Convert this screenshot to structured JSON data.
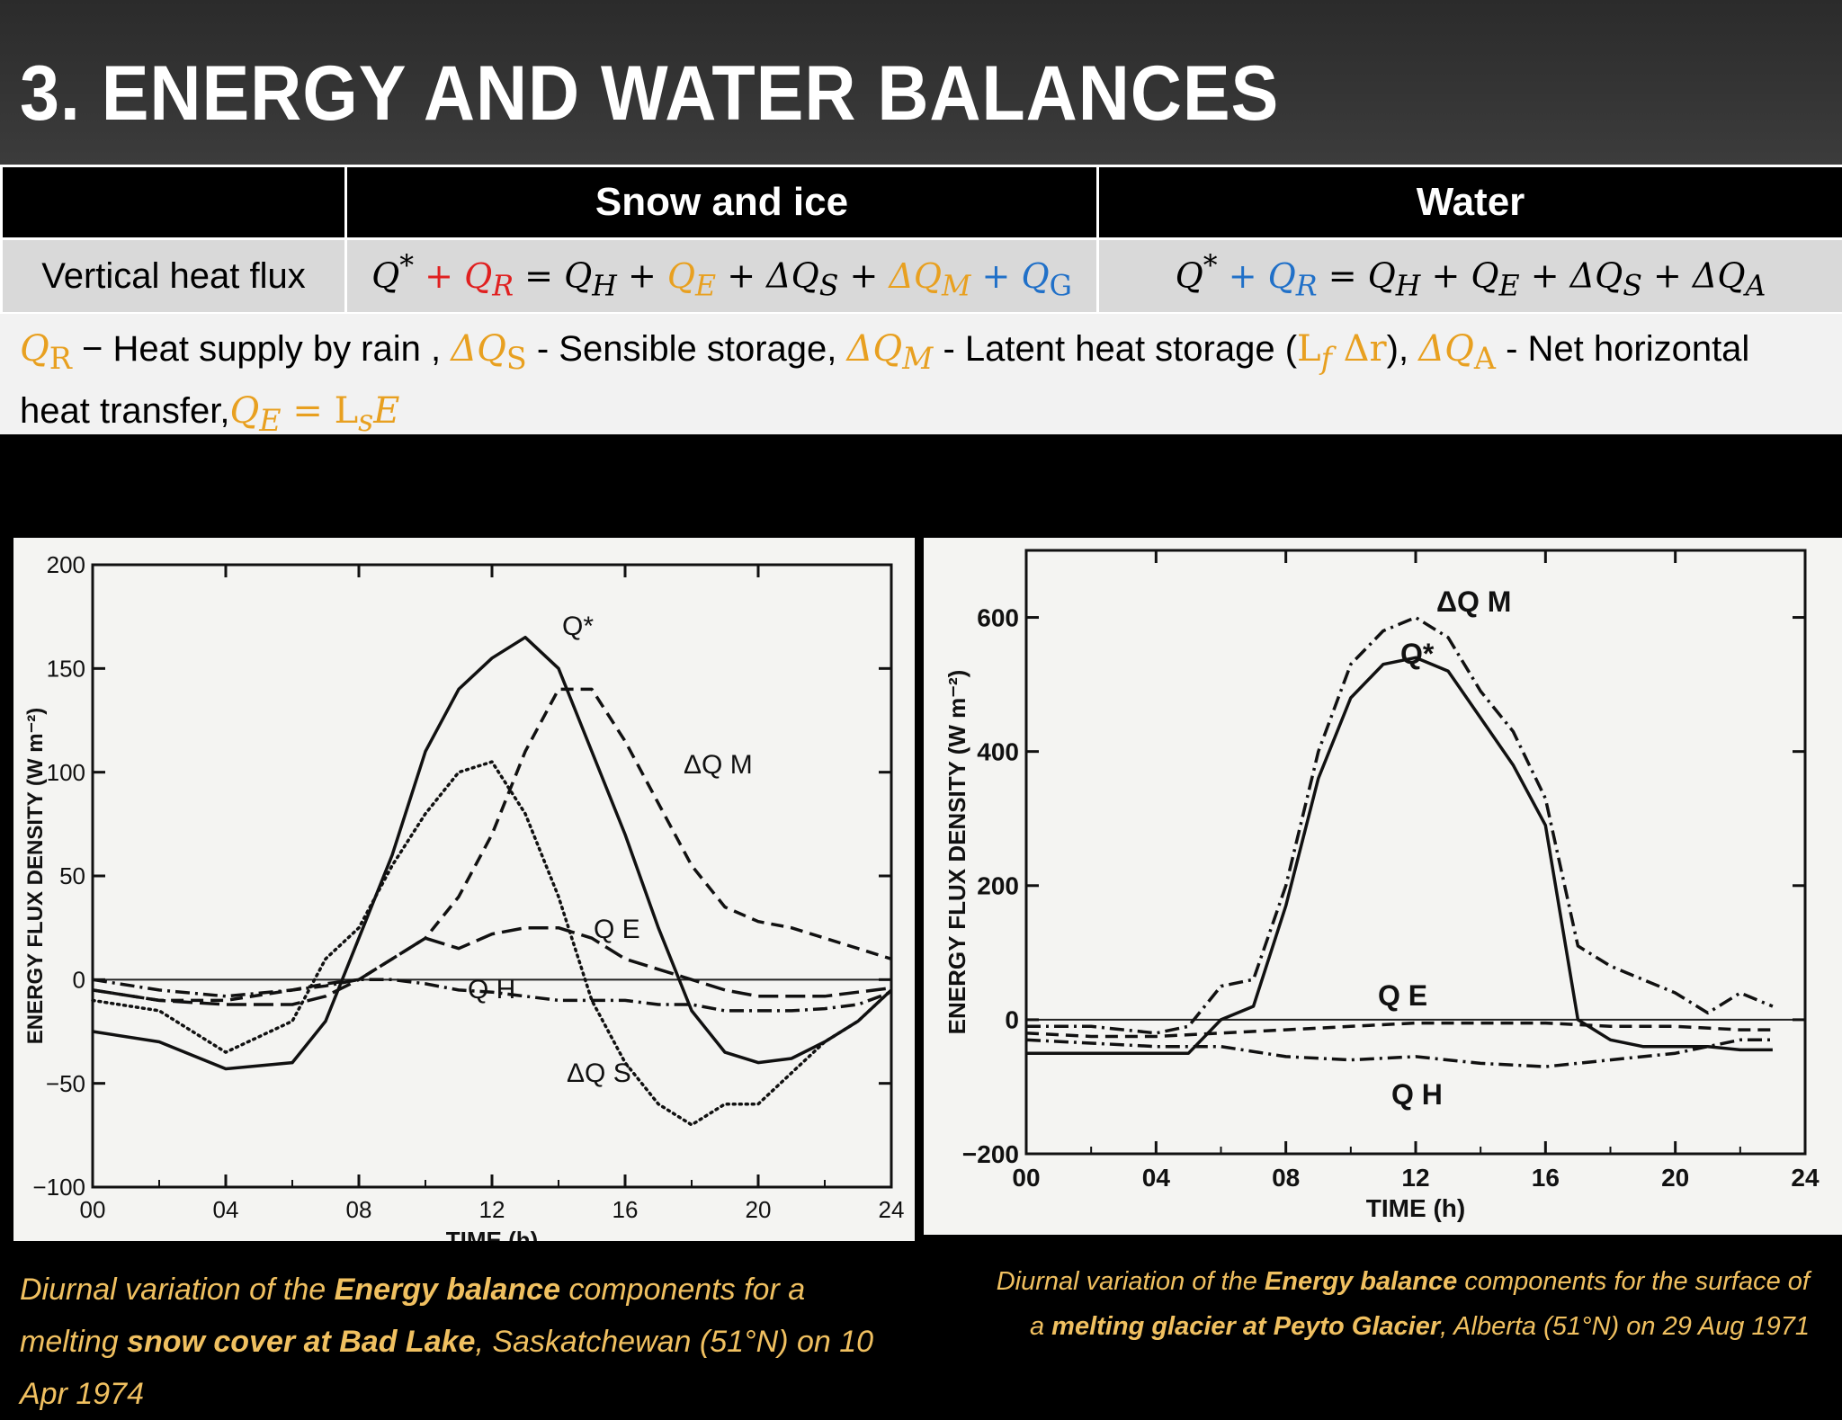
{
  "title": "3. ENERGY AND WATER BALANCES",
  "table": {
    "headers": [
      "",
      "Snow and ice",
      "Water"
    ],
    "row_label": "Vertical heat flux"
  },
  "definitions": {
    "qr_text": " − Heat supply by rain ,   ",
    "dqs_text": " - Sensible storage, ",
    "dqm_text": " - Latent heat storage (",
    "dqa_text": " - Net horizontal heat transfer,"
  },
  "colors": {
    "red": "#e02020",
    "orange": "#e8a020",
    "blue": "#2070c8"
  },
  "chart_data": [
    {
      "type": "line",
      "title": "",
      "xlabel": "TIME (h)",
      "ylabel": "ENERGY FLUX DENSITY (W m⁻²)",
      "xlim": [
        0,
        24
      ],
      "ylim": [
        -100,
        200
      ],
      "xticks": [
        "00",
        "04",
        "08",
        "12",
        "16",
        "20",
        "24"
      ],
      "yticks": [
        "200",
        "150",
        "100",
        "50",
        "0",
        "−50",
        "−100"
      ],
      "series": [
        {
          "name": "Q*",
          "style": "solid",
          "x": [
            0,
            2,
            4,
            6,
            7,
            8,
            9,
            10,
            11,
            12,
            13,
            14,
            15,
            16,
            17,
            18,
            19,
            20,
            21,
            22,
            23,
            24
          ],
          "y": [
            -25,
            -30,
            -43,
            -40,
            -20,
            20,
            60,
            110,
            140,
            155,
            165,
            150,
            110,
            70,
            25,
            -15,
            -35,
            -40,
            -38,
            -30,
            -20,
            -5
          ]
        },
        {
          "name": "ΔQM",
          "style": "dashed",
          "x": [
            0,
            2,
            4,
            6,
            7,
            8,
            9,
            10,
            11,
            12,
            13,
            14,
            15,
            16,
            17,
            18,
            19,
            20,
            21,
            22,
            23,
            24
          ],
          "y": [
            -5,
            -10,
            -10,
            -5,
            -2,
            0,
            10,
            20,
            40,
            70,
            110,
            140,
            140,
            115,
            85,
            55,
            35,
            28,
            25,
            20,
            15,
            10
          ]
        },
        {
          "name": "ΔQS",
          "style": "dotted",
          "x": [
            0,
            2,
            4,
            6,
            7,
            8,
            9,
            10,
            11,
            12,
            13,
            14,
            15,
            16,
            17,
            18,
            19,
            20,
            21,
            22,
            23,
            24
          ],
          "y": [
            -10,
            -15,
            -35,
            -20,
            10,
            25,
            55,
            80,
            100,
            105,
            80,
            40,
            -10,
            -40,
            -60,
            -70,
            -60,
            -60,
            -45,
            -30,
            -20,
            -5
          ]
        },
        {
          "name": "QE",
          "style": "long-dash",
          "x": [
            0,
            2,
            4,
            6,
            7,
            8,
            9,
            10,
            11,
            12,
            13,
            14,
            15,
            16,
            17,
            18,
            19,
            20,
            21,
            22,
            23,
            24
          ],
          "y": [
            -5,
            -10,
            -12,
            -12,
            -8,
            0,
            10,
            20,
            15,
            22,
            25,
            25,
            20,
            10,
            5,
            0,
            -5,
            -8,
            -8,
            -8,
            -6,
            -4
          ]
        },
        {
          "name": "QH",
          "style": "dash-dot",
          "x": [
            0,
            2,
            4,
            6,
            7,
            8,
            9,
            10,
            11,
            12,
            13,
            14,
            15,
            16,
            17,
            18,
            19,
            20,
            21,
            22,
            23,
            24
          ],
          "y": [
            0,
            -5,
            -8,
            -5,
            -3,
            0,
            0,
            -2,
            -5,
            -6,
            -8,
            -10,
            -10,
            -10,
            -12,
            -12,
            -15,
            -15,
            -15,
            -14,
            -12,
            -6
          ]
        }
      ],
      "annotations": [
        "Q*",
        "ΔQ M",
        "Q E",
        "Q H",
        "ΔQ S"
      ]
    },
    {
      "type": "line",
      "title": "",
      "xlabel": "TIME (h)",
      "ylabel": "ENERGY FLUX DENSITY (W m⁻²)",
      "xlim": [
        0,
        24
      ],
      "ylim": [
        -200,
        700
      ],
      "xticks": [
        "00",
        "04",
        "08",
        "12",
        "16",
        "20",
        "24"
      ],
      "yticks": [
        "600",
        "400",
        "200",
        "0",
        "−200"
      ],
      "series": [
        {
          "name": "ΔQM",
          "style": "dash-dot",
          "x": [
            0,
            2,
            4,
            5,
            6,
            7,
            8,
            9,
            10,
            11,
            12,
            13,
            14,
            15,
            16,
            17,
            18,
            19,
            20,
            21,
            22,
            23
          ],
          "y": [
            -10,
            -10,
            -20,
            -10,
            50,
            60,
            200,
            400,
            530,
            580,
            600,
            570,
            490,
            430,
            330,
            110,
            80,
            60,
            40,
            10,
            40,
            20
          ]
        },
        {
          "name": "Q*",
          "style": "solid",
          "x": [
            0,
            2,
            4,
            5,
            6,
            7,
            8,
            9,
            10,
            11,
            12,
            13,
            14,
            15,
            16,
            17,
            18,
            19,
            20,
            21,
            22,
            23
          ],
          "y": [
            -50,
            -50,
            -50,
            -50,
            0,
            20,
            170,
            360,
            480,
            530,
            540,
            520,
            450,
            380,
            290,
            0,
            -30,
            -40,
            -40,
            -40,
            -45,
            -45
          ]
        },
        {
          "name": "QE",
          "style": "dashed",
          "x": [
            0,
            2,
            4,
            6,
            8,
            10,
            12,
            14,
            16,
            18,
            20,
            22,
            23
          ],
          "y": [
            -20,
            -25,
            -25,
            -20,
            -15,
            -10,
            -5,
            -5,
            -5,
            -10,
            -10,
            -15,
            -15
          ]
        },
        {
          "name": "QH",
          "style": "dash-dot",
          "x": [
            0,
            2,
            4,
            6,
            8,
            10,
            12,
            14,
            16,
            18,
            20,
            22,
            23
          ],
          "y": [
            -30,
            -35,
            -40,
            -40,
            -55,
            -60,
            -55,
            -65,
            -70,
            -60,
            -50,
            -30,
            -30
          ]
        }
      ],
      "annotations": [
        "ΔQ M",
        "Q*",
        "Q E",
        "Q H"
      ]
    }
  ],
  "captions": {
    "left": {
      "p1": "Diurnal variation of the ",
      "b1": "Energy balance",
      "p2": " components for a melting ",
      "b2": "snow cover at Bad Lake",
      "p3": ", Saskatchewan (51°N) on 10 Apr 1974"
    },
    "right": {
      "p1": "Diurnal variation of the ",
      "b1": "Energy balance",
      "p2": " components for the surface of a ",
      "b2": "melting glacier at Peyto Glacier",
      "p3": ", Alberta (51°N) on 29 Aug 1971"
    }
  }
}
